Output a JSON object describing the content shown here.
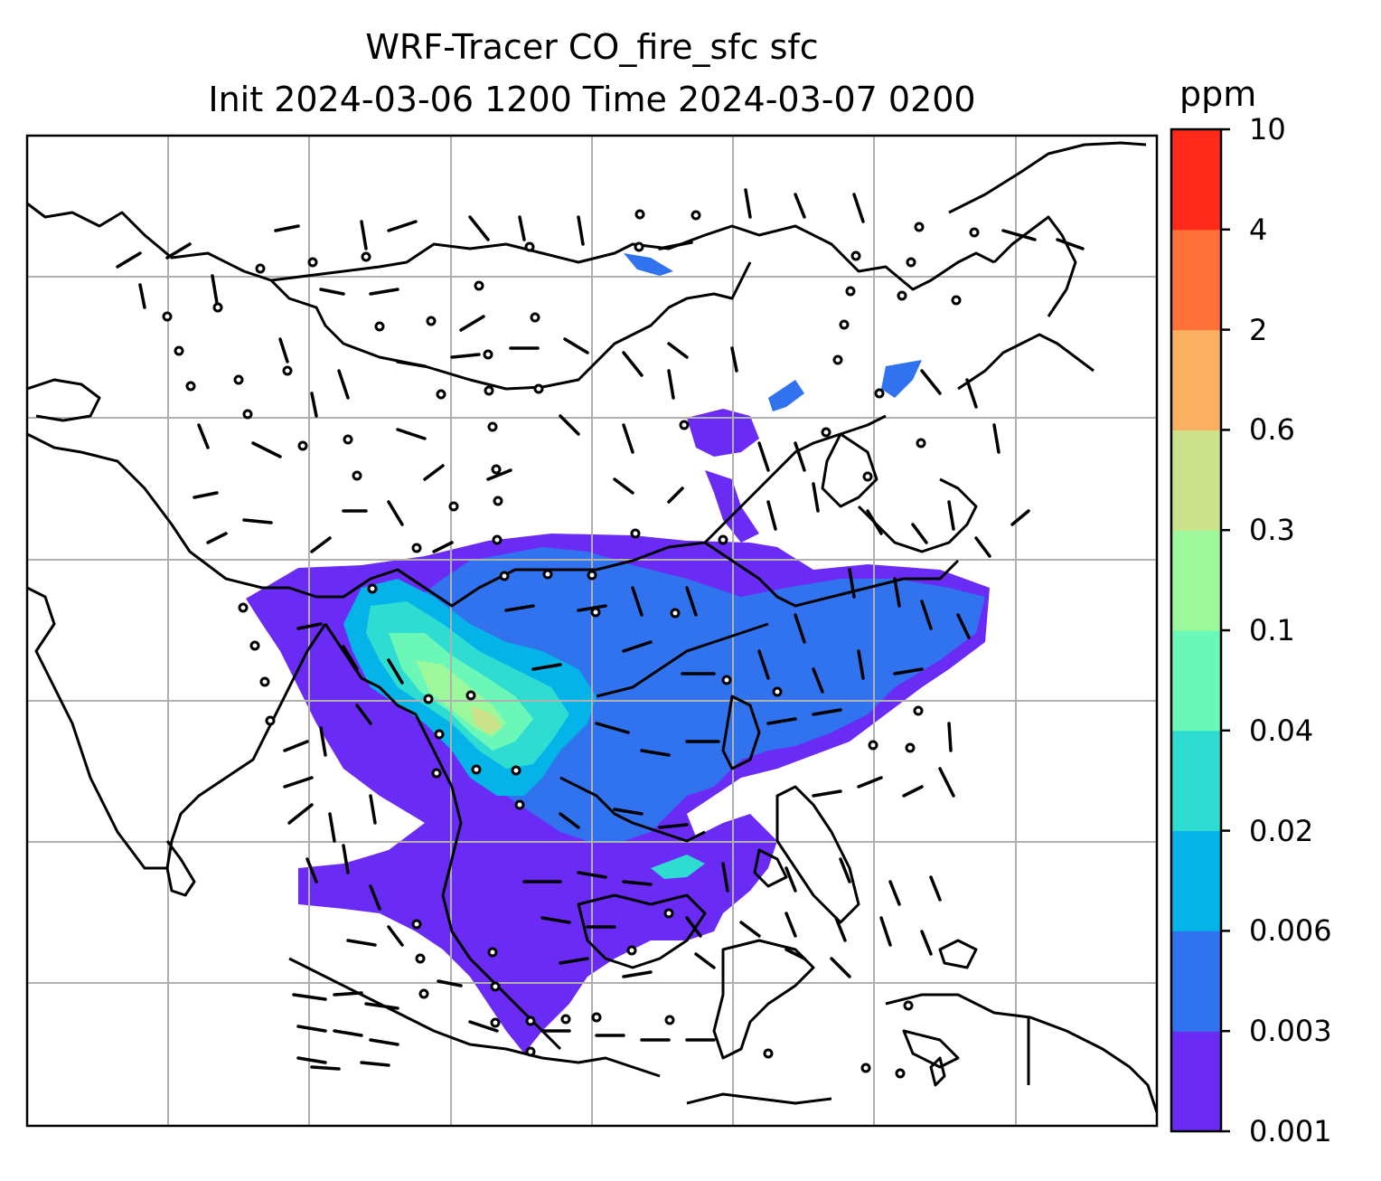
{
  "title": {
    "line1": "WRF-Tracer CO_fire_sfc sfc",
    "line2": "Init 2024-03-06 1200 Time 2024-03-07 0200"
  },
  "colorbar": {
    "unit": "ppm",
    "levels": [
      "0.001",
      "0.003",
      "0.006",
      "0.02",
      "0.04",
      "0.1",
      "0.3",
      "0.6",
      "2",
      "4",
      "10"
    ],
    "colors": [
      "#6a2cf5",
      "#3173ef",
      "#04b4e8",
      "#2fdcd2",
      "#6bf7b7",
      "#9cf89b",
      "#cbe28a",
      "#fbaf62",
      "#ff7139",
      "#ff2a1a"
    ]
  },
  "map": {
    "gridlines": true,
    "background": "#ffffff",
    "coastline_color": "#000000",
    "grid_color": "#b0b0b0",
    "features": [
      "coastlines",
      "country borders",
      "wind barbs",
      "CO tracer fill"
    ]
  }
}
